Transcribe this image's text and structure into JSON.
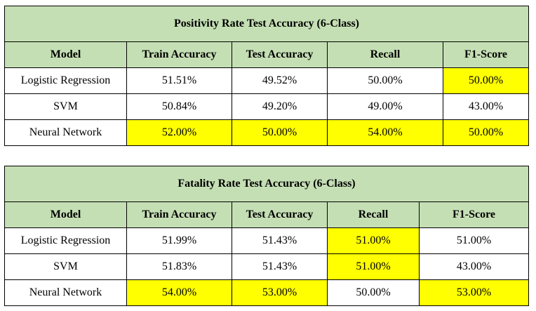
{
  "tables": [
    {
      "title": "Positivity Rate Test Accuracy (6-Class)",
      "headers": [
        "Model",
        "Train Accuracy",
        "Test Accuracy",
        "Recall",
        "F1-Score"
      ],
      "rows": [
        {
          "cells": [
            "Logistic Regression",
            "51.51%",
            "49.52%",
            "50.00%",
            "50.00%"
          ],
          "highlight": [
            false,
            false,
            false,
            false,
            true
          ]
        },
        {
          "cells": [
            "SVM",
            "50.84%",
            "49.20%",
            "49.00%",
            "43.00%"
          ],
          "highlight": [
            false,
            false,
            false,
            false,
            false
          ]
        },
        {
          "cells": [
            "Neural Network",
            "52.00%",
            "50.00%",
            "54.00%",
            "50.00%"
          ],
          "highlight": [
            false,
            true,
            true,
            true,
            true
          ]
        }
      ]
    },
    {
      "title": "Fatality Rate Test Accuracy (6-Class)",
      "headers": [
        "Model",
        "Train Accuracy",
        "Test Accuracy",
        "Recall",
        "F1-Score"
      ],
      "rows": [
        {
          "cells": [
            "Logistic Regression",
            "51.99%",
            "51.43%",
            "51.00%",
            "51.00%"
          ],
          "highlight": [
            false,
            false,
            false,
            true,
            false
          ]
        },
        {
          "cells": [
            "SVM",
            "51.83%",
            "51.43%",
            "51.00%",
            "43.00%"
          ],
          "highlight": [
            false,
            false,
            false,
            true,
            false
          ]
        },
        {
          "cells": [
            "Neural Network",
            "54.00%",
            "53.00%",
            "50.00%",
            "53.00%"
          ],
          "highlight": [
            false,
            true,
            true,
            false,
            true
          ]
        }
      ]
    }
  ],
  "colors": {
    "header_fill": "#c5dfb4",
    "highlight_fill": "#ffff00",
    "border": "#000000"
  }
}
